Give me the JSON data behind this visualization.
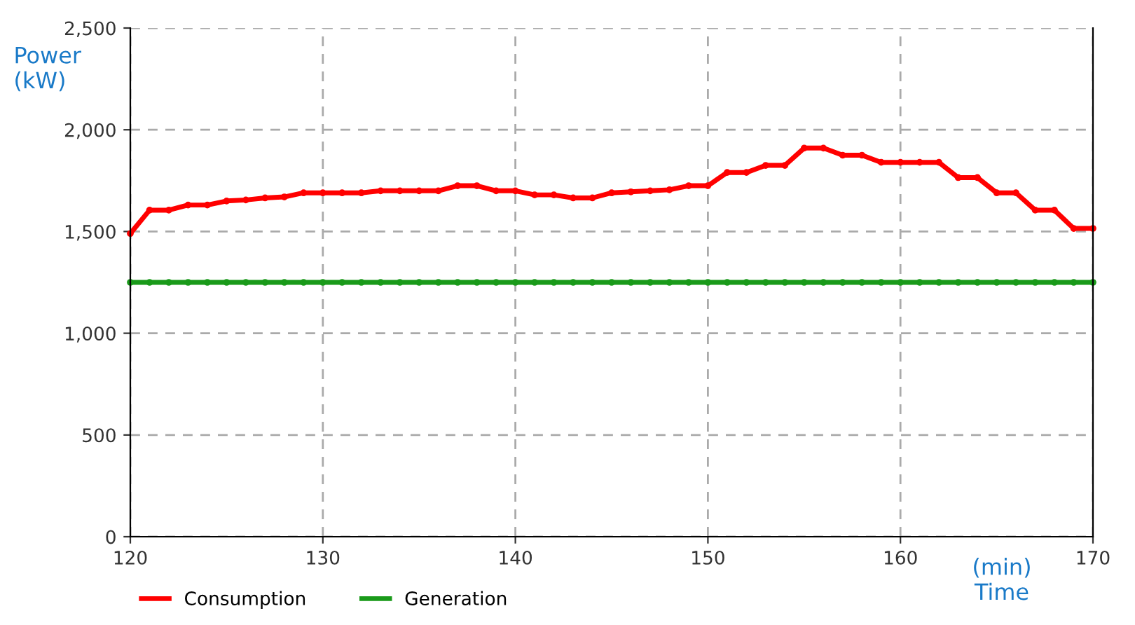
{
  "chart_data": {
    "type": "line",
    "xlabel": "(min)\nTime",
    "ylabel": "Power\n(kW)",
    "x": [
      120,
      121,
      122,
      123,
      124,
      125,
      126,
      127,
      128,
      129,
      130,
      131,
      132,
      133,
      134,
      135,
      136,
      137,
      138,
      139,
      140,
      141,
      142,
      143,
      144,
      145,
      146,
      147,
      148,
      149,
      150,
      151,
      152,
      153,
      154,
      155,
      156,
      157,
      158,
      159,
      160,
      161,
      162,
      163,
      164,
      165,
      166,
      167,
      168,
      169,
      170
    ],
    "series": [
      {
        "name": "Consumption",
        "color": "#ff0000",
        "values": [
          1490,
          1605,
          1605,
          1630,
          1630,
          1650,
          1655,
          1665,
          1670,
          1690,
          1690,
          1690,
          1690,
          1700,
          1700,
          1700,
          1700,
          1725,
          1725,
          1700,
          1700,
          1680,
          1680,
          1665,
          1665,
          1690,
          1695,
          1700,
          1705,
          1725,
          1725,
          1790,
          1790,
          1825,
          1825,
          1910,
          1910,
          1875,
          1875,
          1840,
          1840,
          1840,
          1840,
          1765,
          1765,
          1690,
          1690,
          1605,
          1605,
          1515,
          1515
        ]
      },
      {
        "name": "Generation",
        "color": "#1a9a1a",
        "values": [
          1250,
          1250,
          1250,
          1250,
          1250,
          1250,
          1250,
          1250,
          1250,
          1250,
          1250,
          1250,
          1250,
          1250,
          1250,
          1250,
          1250,
          1250,
          1250,
          1250,
          1250,
          1250,
          1250,
          1250,
          1250,
          1250,
          1250,
          1250,
          1250,
          1250,
          1250,
          1250,
          1250,
          1250,
          1250,
          1250,
          1250,
          1250,
          1250,
          1250,
          1250,
          1250,
          1250,
          1250,
          1250,
          1250,
          1250,
          1250,
          1250,
          1250,
          1250
        ]
      }
    ],
    "xlim": [
      120,
      170
    ],
    "xticks": [
      120,
      130,
      140,
      150,
      160,
      170
    ],
    "ylim": [
      0,
      2500
    ],
    "yticks": [
      {
        "value": 0,
        "label": "0"
      },
      {
        "value": 500,
        "label": "500"
      },
      {
        "value": 1000,
        "label": "1,000"
      },
      {
        "value": 1500,
        "label": "1,500"
      },
      {
        "value": 2000,
        "label": "2,000"
      },
      {
        "value": 2500,
        "label": "2,500"
      }
    ],
    "grid": true,
    "legend": "bottom",
    "marker": "circle",
    "line_style": "solid"
  }
}
